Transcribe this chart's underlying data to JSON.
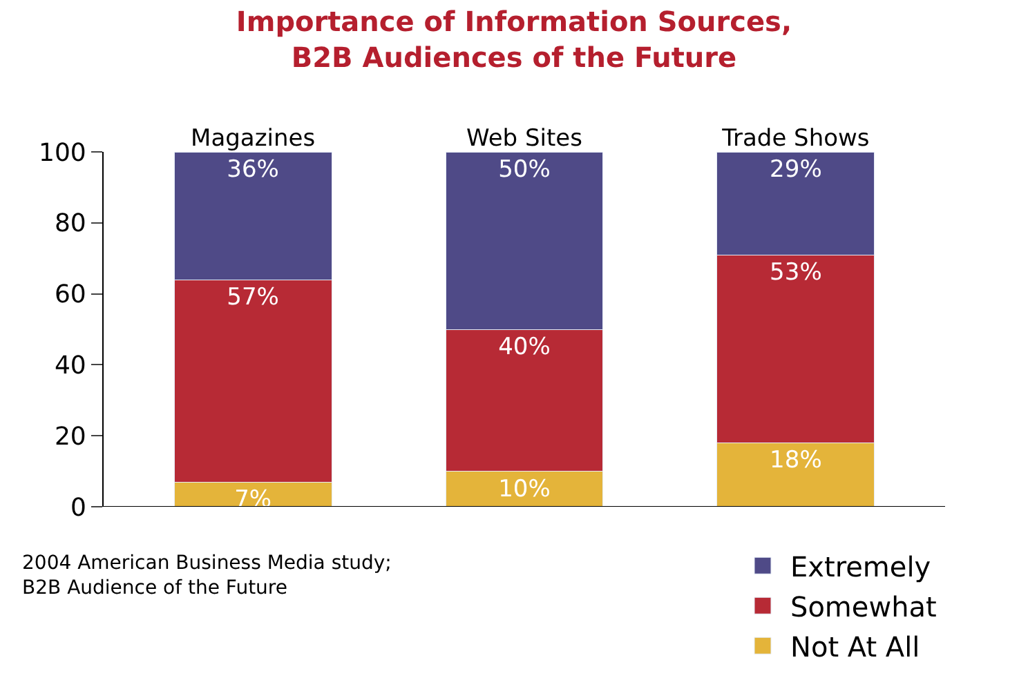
{
  "chart_data": {
    "type": "bar",
    "stacked": true,
    "title": "Importance of Information Sources,\nB2B Audiences of the Future",
    "categories": [
      "Magazines",
      "Web Sites",
      "Trade Shows"
    ],
    "series": [
      {
        "name": "Not At All",
        "color": "#e4b43a",
        "values": [
          7,
          10,
          18
        ],
        "value_labels": [
          "7%",
          "10%",
          "18%"
        ]
      },
      {
        "name": "Somewhat",
        "color": "#b72a35",
        "values": [
          57,
          40,
          53
        ],
        "value_labels": [
          "57%",
          "40%",
          "53%"
        ]
      },
      {
        "name": "Extremely",
        "color": "#4f4a87",
        "values": [
          36,
          50,
          29
        ],
        "value_labels": [
          "36%",
          "50%",
          "29%"
        ]
      }
    ],
    "ylim": [
      0,
      100
    ],
    "yticks": [
      0,
      20,
      40,
      60,
      80,
      100
    ],
    "legend": "bottom right",
    "annotations": [
      "2004 American Business Media study;\nB2B Audience of the Future"
    ]
  }
}
